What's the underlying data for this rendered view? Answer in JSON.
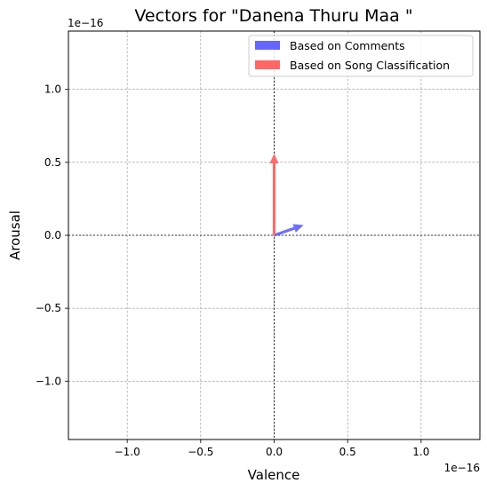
{
  "chart_data": {
    "type": "quiver",
    "title": "Vectors for \"Danena Thuru Maa \"",
    "xlabel": "Valence",
    "ylabel": "Arousal",
    "x_offset_label": "1e−16",
    "y_offset_label": "1e−16",
    "xlim": [
      -1.4,
      1.4
    ],
    "ylim": [
      -1.4,
      1.4
    ],
    "x_ticks": [
      -1.0,
      -0.5,
      0.0,
      0.5,
      1.0
    ],
    "x_tick_labels": [
      "−1.0",
      "−0.5",
      "0.0",
      "0.5",
      "1.0"
    ],
    "y_ticks": [
      -1.0,
      -0.5,
      0.0,
      0.5,
      1.0
    ],
    "y_tick_labels": [
      "−1.0",
      "−0.5",
      "0.0",
      "0.5",
      "1.0"
    ],
    "grid": true,
    "legend_position": "top-right",
    "series": [
      {
        "name": "Based on Comments",
        "color": "#6666ff",
        "origin": [
          0,
          0
        ],
        "vector": [
          0.2,
          0.07
        ]
      },
      {
        "name": "Based on Song Classification",
        "color": "#ff6666",
        "origin": [
          0,
          0
        ],
        "vector": [
          0.0,
          0.56
        ]
      }
    ]
  }
}
